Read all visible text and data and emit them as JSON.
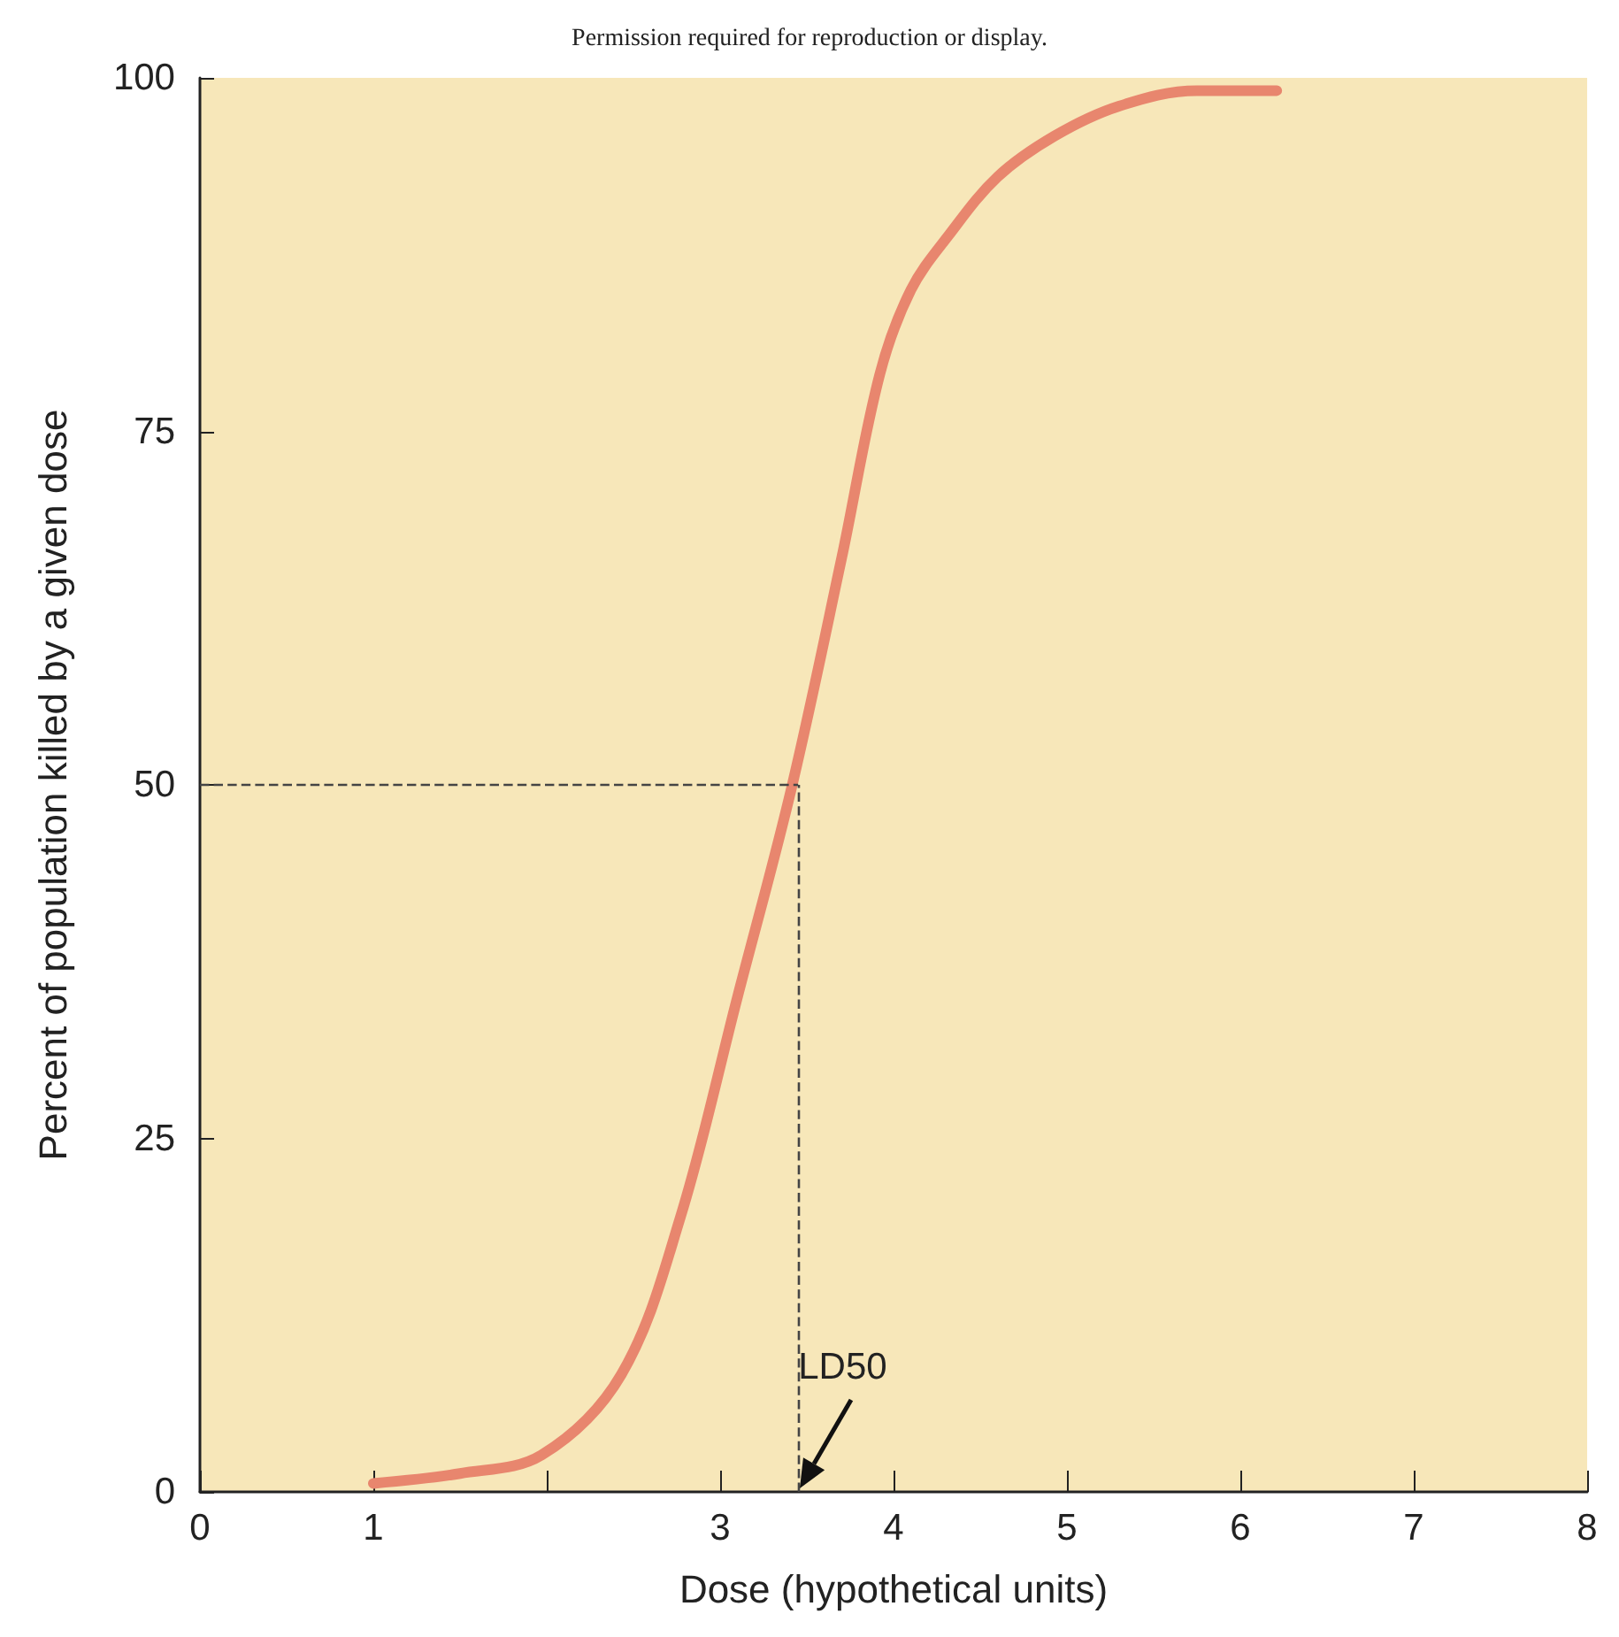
{
  "chart_data": {
    "type": "line",
    "xlabel": "Dose (hypothetical units)",
    "ylabel": "Percent of population killed by a given dose",
    "annotations": [
      "Permission required for reproduction or display.",
      {
        "text": "LD50",
        "x": 3.45,
        "y": 0
      }
    ],
    "x": [
      1,
      1.5,
      1.97,
      2.43,
      2.77,
      3.1,
      3.41,
      3.7,
      3.92,
      4.1,
      4.32,
      4.6,
      4.93,
      5.3,
      5.75,
      6.21
    ],
    "series": [
      {
        "color": "#e8866e",
        "values": [
          0.6,
          1.3,
          2.6,
          8.3,
          19.4,
          35,
          49.7,
          66,
          79,
          85,
          88.9,
          93,
          95.9,
          98,
          99.1,
          99.1
        ]
      }
    ],
    "xlim": [
      0,
      8
    ],
    "xticks": [
      0,
      1,
      {
        "value": 2,
        "label": null
      },
      3,
      4,
      5,
      6,
      7,
      8
    ],
    "ylim": [
      0,
      100
    ],
    "yticks": [
      0,
      25,
      50,
      75,
      100
    ],
    "ref_lines": [
      {
        "axis": "y",
        "value": 50,
        "line_style": "dashed",
        "color": "#444444"
      },
      {
        "axis": "x",
        "value": 3.45,
        "line_style": "dashed",
        "color": "#444444"
      }
    ],
    "grid": false,
    "marker": "none",
    "line_style": "solid"
  }
}
